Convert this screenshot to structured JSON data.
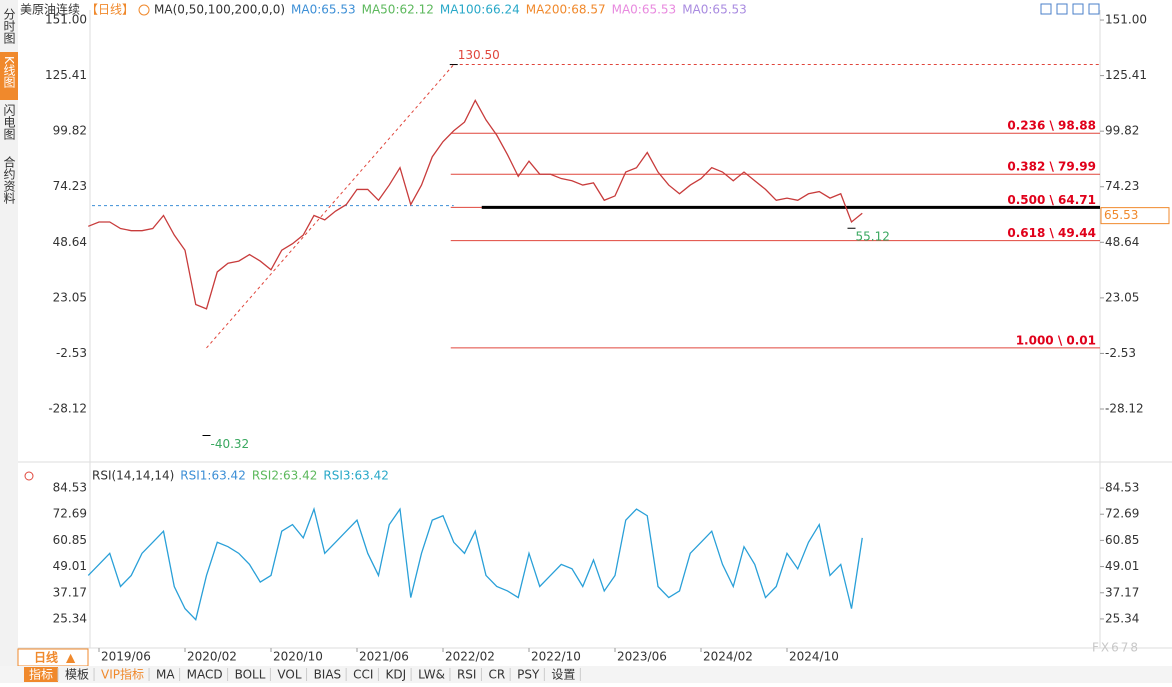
{
  "sidebar_tabs": [
    "分时图",
    "K线图",
    "闪电图",
    "合约资料"
  ],
  "chart_data": [
    {
      "type": "line",
      "title": "美原油连续",
      "subtitle": "【日线】",
      "indicator": "MA(0,50,100,200,0,0)",
      "legend_items": [
        {
          "name": "MA0:65.53",
          "color": "#3d8fd6"
        },
        {
          "name": "MA50:62.12",
          "color": "#5cb85c"
        },
        {
          "name": "MA100:66.24",
          "color": "#28a8c8"
        },
        {
          "name": "MA200:68.57",
          "color": "#f0892c"
        },
        {
          "name": "MA0:65.53",
          "color": "#e88adf"
        },
        {
          "name": "MA0:65.53",
          "color": "#a98be0"
        }
      ],
      "x": [
        "2019/05",
        "2019/06",
        "2019/07",
        "2019/08",
        "2019/09",
        "2019/10",
        "2019/11",
        "2019/12",
        "2020/01",
        "2020/02",
        "2020/03",
        "2020/04",
        "2020/05",
        "2020/06",
        "2020/07",
        "2020/08",
        "2020/09",
        "2020/10",
        "2020/11",
        "2020/12",
        "2021/01",
        "2021/02",
        "2021/03",
        "2021/04",
        "2021/05",
        "2021/06",
        "2021/07",
        "2021/08",
        "2021/09",
        "2021/10",
        "2021/11",
        "2021/12",
        "2022/01",
        "2022/02",
        "2022/03",
        "2022/04",
        "2022/05",
        "2022/06",
        "2022/07",
        "2022/08",
        "2022/09",
        "2022/10",
        "2022/11",
        "2022/12",
        "2023/01",
        "2023/02",
        "2023/03",
        "2023/04",
        "2023/05",
        "2023/06",
        "2023/07",
        "2023/08",
        "2023/09",
        "2023/10",
        "2023/11",
        "2023/12",
        "2024/01",
        "2024/02",
        "2024/03",
        "2024/04",
        "2024/05",
        "2024/06",
        "2024/07",
        "2024/08",
        "2024/09",
        "2024/10",
        "2024/11",
        "2024/12",
        "2025/01",
        "2025/02",
        "2025/03",
        "2025/04",
        "2025/05"
      ],
      "series": [
        {
          "color": "#c83c3c",
          "values": [
            56,
            58,
            58,
            55,
            54,
            54,
            55,
            61,
            52,
            45,
            20,
            18,
            35,
            39,
            40,
            43,
            40,
            36,
            45,
            48,
            52,
            61,
            59,
            63,
            66,
            73,
            73,
            68,
            75,
            83,
            66,
            75,
            88,
            95,
            100,
            104,
            114,
            105,
            98,
            89,
            79,
            86,
            80,
            80,
            78,
            77,
            75,
            76,
            68,
            70,
            81,
            83,
            90,
            81,
            75,
            71,
            75,
            78,
            83,
            81,
            77,
            81,
            77,
            73,
            68,
            69,
            68,
            71,
            72,
            69,
            71,
            58,
            62
          ]
        }
      ],
      "ylim": [
        -49.3,
        154.7
      ],
      "yticks": [
        {
          "value": 151,
          "label": "151.00"
        },
        125.41,
        99.82,
        74.23,
        48.64,
        23.05,
        -2.53,
        -28.12
      ],
      "xticks": [
        "2019/06",
        "2020/02",
        "2020/10",
        "2021/06",
        "2022/02",
        "2022/10",
        "2023/06",
        "2024/02",
        "2024/10"
      ],
      "annotations": [
        {
          "x": "2022/03",
          "value": 130.5,
          "label": "130.50",
          "color": "#e0463c"
        },
        {
          "x": "2020/04",
          "value": -40.32,
          "color": "#3aa860"
        },
        {
          "x": "2025/04",
          "value": 55.12,
          "color": "#3aa860"
        }
      ],
      "fib_levels": [
        {
          "label": "0.236 \\ 98.88",
          "value": 98.88
        },
        {
          "label": "0.382 \\ 79.99",
          "value": 79.99
        },
        {
          "label": "0.500 \\ 64.71",
          "value": 64.71
        },
        {
          "label": "0.618 \\ 49.44",
          "value": 49.44
        },
        {
          "label": "1.000 \\ 0.01",
          "value": 0.01
        }
      ],
      "current_price": 65.53
    },
    {
      "type": "line",
      "title": "RSI(14,14,14)",
      "legend_items": [
        {
          "name": "RSI1:63.42",
          "color": "#3d8fd6"
        },
        {
          "name": "RSI2:63.42",
          "color": "#5cb85c"
        },
        {
          "name": "RSI3:63.42",
          "color": "#28a8c8"
        }
      ],
      "series": [
        {
          "color": "#2aa0d8",
          "values": [
            45,
            50,
            55,
            40,
            45,
            55,
            60,
            65,
            40,
            30,
            25,
            45,
            60,
            58,
            55,
            50,
            42,
            45,
            65,
            68,
            62,
            75,
            55,
            60,
            65,
            70,
            55,
            45,
            68,
            75,
            35,
            55,
            70,
            72,
            60,
            55,
            65,
            45,
            40,
            38,
            35,
            55,
            40,
            45,
            50,
            48,
            40,
            52,
            38,
            45,
            70,
            75,
            72,
            40,
            35,
            38,
            55,
            60,
            65,
            50,
            40,
            58,
            50,
            35,
            40,
            55,
            48,
            60,
            68,
            45,
            50,
            30,
            62
          ]
        }
      ],
      "ylim": [
        12.2,
        86.8
      ],
      "yticks": [
        84.53,
        72.69,
        60.85,
        49.01,
        37.17,
        25.34
      ]
    }
  ],
  "period_tab": "日线",
  "toolbar": [
    "指标",
    "模板",
    "VIP指标",
    "MA",
    "MACD",
    "BOLL",
    "VOL",
    "BIAS",
    "CCI",
    "KDJ",
    "LW&",
    "RSI",
    "CR",
    "PSY",
    "设置"
  ],
  "watermark": "FX678"
}
